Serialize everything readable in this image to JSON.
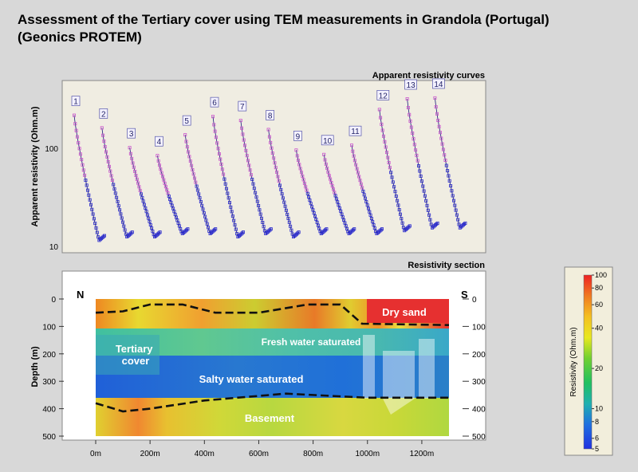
{
  "title": {
    "line1": "Assessment of the Tertiary cover using TEM measurements in Grandola (Portugal)",
    "line2": "(Geonics PROTEM)"
  },
  "chart_data": [
    {
      "type": "scatter",
      "title": "Apparent resistivity curves",
      "ylabel": "Apparent resistivity (Ohm.m)",
      "yscale": "log",
      "ylim": [
        10,
        400
      ],
      "yticks": [
        "10",
        "100"
      ],
      "grid": false,
      "colors": {
        "early": "#cc55cc",
        "late": "#2a2acc",
        "curve": "#1a1a7a"
      },
      "series": [
        {
          "name": "1",
          "start": 190,
          "end": 13
        },
        {
          "name": "2",
          "start": 145,
          "end": 14
        },
        {
          "name": "3",
          "start": 95,
          "end": 14
        },
        {
          "name": "4",
          "start": 80,
          "end": 15
        },
        {
          "name": "5",
          "start": 125,
          "end": 15
        },
        {
          "name": "6",
          "start": 185,
          "end": 14
        },
        {
          "name": "7",
          "start": 170,
          "end": 15
        },
        {
          "name": "8",
          "start": 140,
          "end": 14
        },
        {
          "name": "9",
          "start": 90,
          "end": 15
        },
        {
          "name": "10",
          "start": 82,
          "end": 15
        },
        {
          "name": "11",
          "start": 100,
          "end": 15
        },
        {
          "name": "12",
          "start": 215,
          "end": 16
        },
        {
          "name": "13",
          "start": 270,
          "end": 17
        },
        {
          "name": "14",
          "start": 275,
          "end": 17
        }
      ]
    },
    {
      "type": "heatmap",
      "title": "Resistivity section",
      "ylabel": "Depth (m)",
      "yticks": [
        "0",
        "100",
        "200",
        "300",
        "400",
        "500"
      ],
      "xticks": [
        "0m",
        "200m",
        "400m",
        "600m",
        "800m",
        "1000m",
        "1200m"
      ],
      "xlim": [
        0,
        1300
      ],
      "ylim": [
        0,
        500
      ],
      "orientation": {
        "left": "N",
        "right": "S"
      },
      "layers": [
        {
          "label": "Dry sand",
          "resistivity": 100
        },
        {
          "label": "Fresh water saturated",
          "resistivity": 30
        },
        {
          "label": "Tertiary cover",
          "resistivity": 10
        },
        {
          "label": "Salty water saturated",
          "resistivity": 6
        },
        {
          "label": "Basement",
          "resistivity": 40
        }
      ],
      "upper_boundary": [
        [
          0,
          50
        ],
        [
          100,
          45
        ],
        [
          200,
          20
        ],
        [
          320,
          20
        ],
        [
          440,
          50
        ],
        [
          600,
          50
        ],
        [
          780,
          20
        ],
        [
          900,
          20
        ],
        [
          980,
          90
        ],
        [
          1300,
          95
        ]
      ],
      "lower_boundary": [
        [
          0,
          380
        ],
        [
          100,
          410
        ],
        [
          200,
          400
        ],
        [
          400,
          370
        ],
        [
          700,
          345
        ],
        [
          1000,
          360
        ],
        [
          1300,
          360
        ]
      ]
    }
  ],
  "colorbar": {
    "label": "Resistivity (Ohm.m)",
    "ticks": [
      "100",
      "80",
      "60",
      "40",
      "20",
      "10",
      "8",
      "6",
      "5"
    ],
    "tick_values": [
      100,
      80,
      60,
      40,
      20,
      10,
      8,
      6,
      5
    ]
  }
}
